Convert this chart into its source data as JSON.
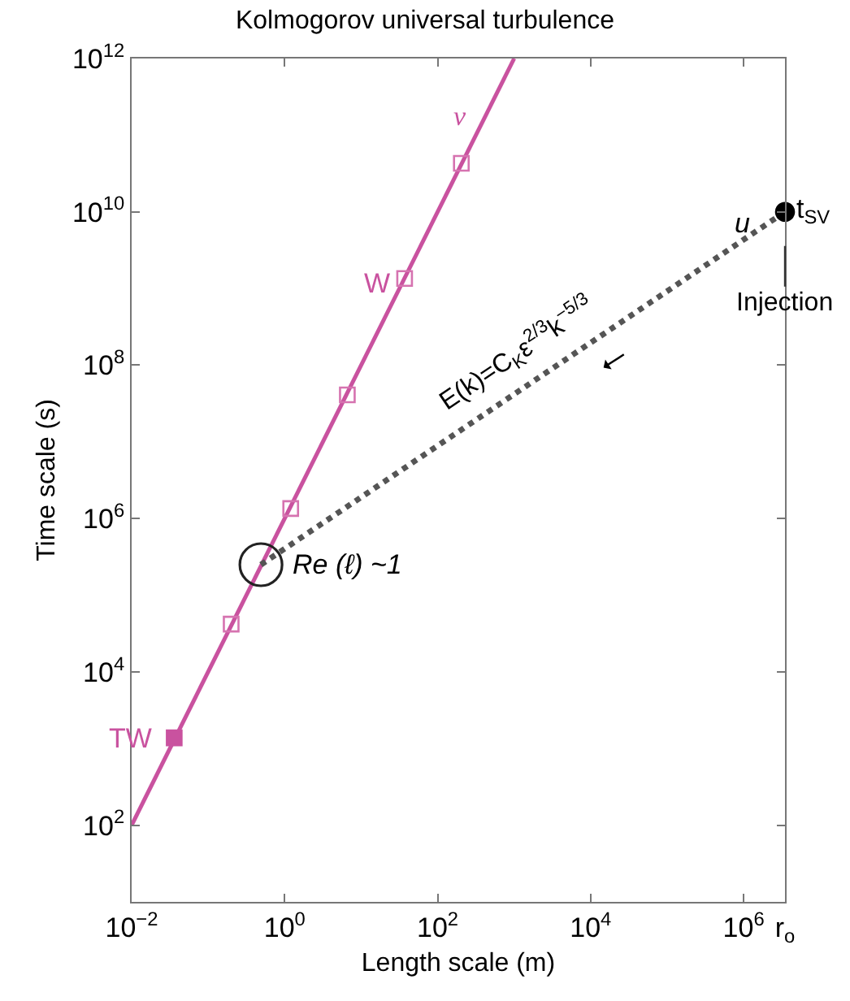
{
  "chart_data": {
    "type": "line",
    "title": "Kolmogorov universal turbulence",
    "xlabel": "Length scale (m)",
    "ylabel": "Time scale (s)",
    "log": "xy",
    "xlim": [
      0.01,
      3470000
    ],
    "ylim": [
      10,
      1000000000000.0
    ],
    "xticks": [
      {
        "value": 0.01,
        "label": "10$^{−2}$"
      },
      {
        "value": 1,
        "label": "10$^{0}$"
      },
      {
        "value": 100,
        "label": "10$^{2}$"
      },
      {
        "value": 10000,
        "label": "10$^{4}$"
      },
      {
        "value": 1000000,
        "label": "10$^{6}$"
      },
      {
        "value": 3470000,
        "label": "r$_{o}$"
      }
    ],
    "yticks": [
      {
        "value": 100,
        "label": "10$^{2}$"
      },
      {
        "value": 10000,
        "label": "10$^{4}$"
      },
      {
        "value": 1000000,
        "label": "10$^{6}$"
      },
      {
        "value": 100000000,
        "label": "10$^{8}$"
      },
      {
        "value": 10000000000,
        "label": "10$^{10}$"
      },
      {
        "value": 1000000000000,
        "label": "10$^{12}$"
      }
    ],
    "series": [
      {
        "color": "#c9529f",
        "x": [
          0.01,
          1000
        ],
        "values": [
          100,
          1000000000000.0
        ],
        "marker": "none",
        "line_style": "solid"
      },
      {
        "type": "scatter",
        "color": "#d673b0",
        "x": [
          0.2,
          1.2,
          6.6,
          37,
          204
        ],
        "values": [
          42000,
          1350000,
          41000000,
          1350000000,
          43000000000
        ],
        "marker": "square-open"
      },
      {
        "type": "scatter",
        "color": "#c9529f",
        "x": [
          0.036
        ],
        "values": [
          1380
        ],
        "marker": "square"
      },
      {
        "color": "#555555",
        "x": [
          0.49,
          3470000
        ],
        "values": [
          250000,
          10000000000
        ],
        "marker": "none",
        "line_style": "dotted"
      },
      {
        "type": "scatter",
        "color": "#222222",
        "x": [
          0.49
        ],
        "values": [
          250000
        ],
        "marker": "circle-open"
      },
      {
        "type": "scatter",
        "color": "#000000",
        "x": [
          3470000
        ],
        "values": [
          10000000000
        ],
        "marker": "circle"
      }
    ],
    "annotations": [
      "ν",
      {
        "text": "W",
        "x": 37,
        "y": 1350000000
      },
      {
        "text": "TW",
        "x": 0.036,
        "y": 1380
      },
      "u",
      {
        "text": "t$_{SV}$",
        "x": 3470000,
        "y": 10000000000
      },
      "Injection",
      "E(k)=C$_{K}$ε$^{2/3}$k$^{−5/3}$",
      {
        "text": "Re (ℓ) ~1",
        "x": 0.49,
        "y": 250000
      }
    ]
  }
}
